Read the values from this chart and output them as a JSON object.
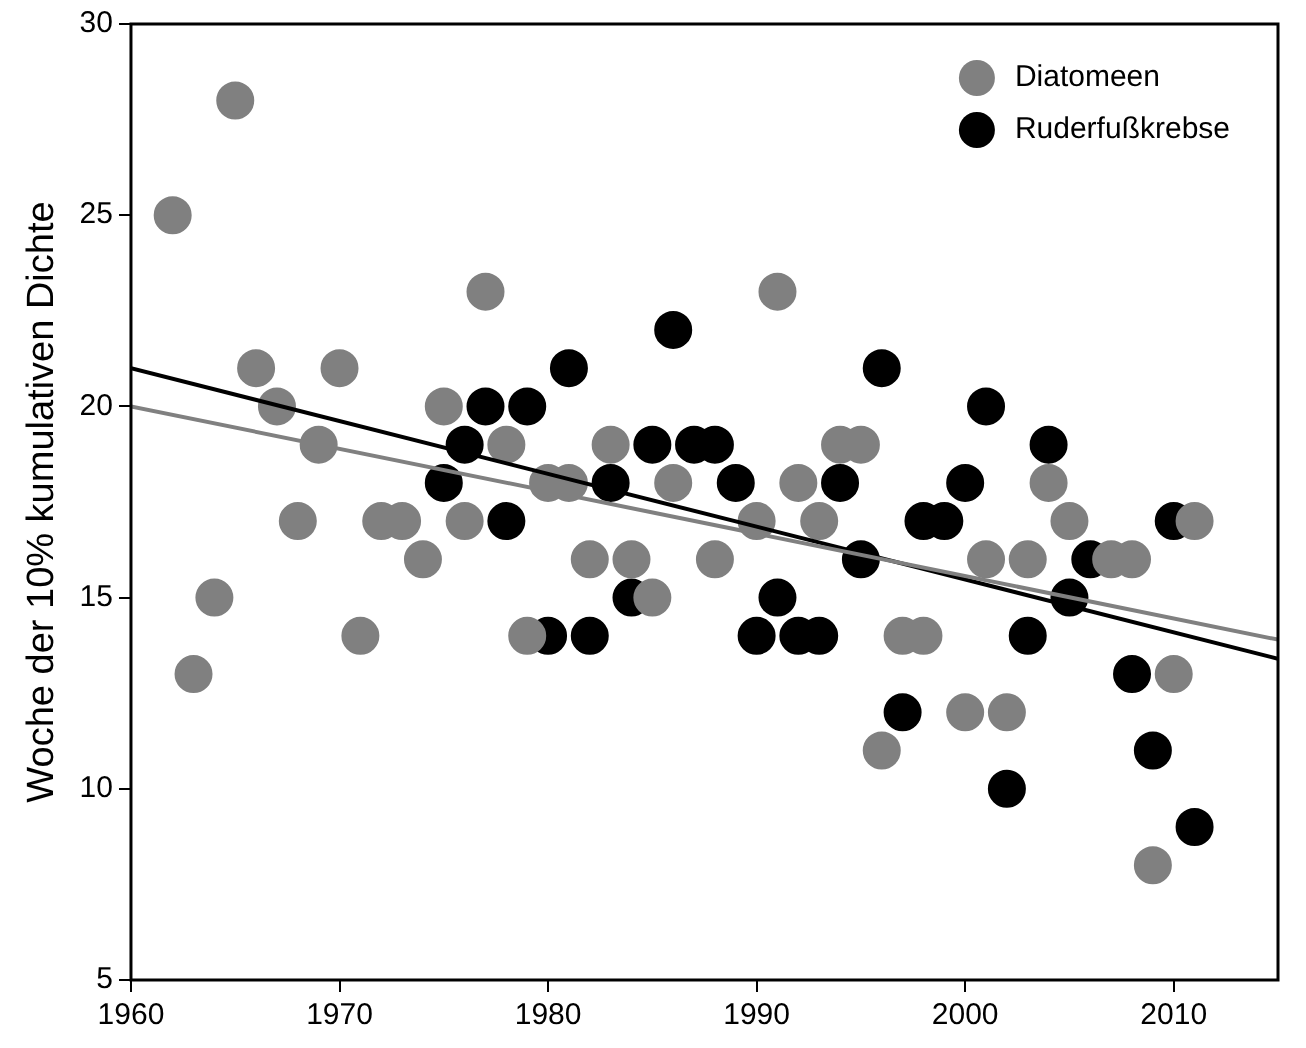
{
  "chart_data": {
    "type": "scatter",
    "ylabel": "Woche der 10% kumulativen Dichte",
    "xlim": [
      1960,
      2015
    ],
    "xticks": [
      1960,
      1970,
      1980,
      1990,
      2000,
      2010
    ],
    "ylim": [
      5,
      30
    ],
    "yticks": [
      5,
      10,
      15,
      20,
      25,
      30
    ],
    "grid": false,
    "legend": "top right",
    "marker": "circle",
    "series": [
      {
        "name": "Diatomeen",
        "color": "#808080",
        "x": [
          1962,
          1963,
          1964,
          1965,
          1966,
          1967,
          1968,
          1969,
          1970,
          1971,
          1972,
          1973,
          1974,
          1975,
          1976,
          1977,
          1978,
          1979,
          1980,
          1981,
          1982,
          1983,
          1984,
          1985,
          1986,
          1988,
          1990,
          1991,
          1992,
          1993,
          1994,
          1995,
          1996,
          1997,
          1998,
          2000,
          2001,
          2002,
          2003,
          2004,
          2005,
          2007,
          2008,
          2009,
          2010,
          2011
        ],
        "values": [
          25,
          13,
          15,
          28,
          21,
          20,
          17,
          19,
          21,
          14,
          17,
          17,
          16,
          20,
          17,
          23,
          19,
          14,
          18,
          18,
          16,
          19,
          16,
          15,
          18,
          16,
          17,
          23,
          18,
          17,
          19,
          19,
          11,
          14,
          14,
          12,
          16,
          12,
          16,
          18,
          17,
          16,
          16,
          8,
          13,
          17
        ]
      },
      {
        "name": "Ruderfußkrebse",
        "color": "#000000",
        "x": [
          1975,
          1976,
          1977,
          1978,
          1979,
          1980,
          1981,
          1982,
          1983,
          1984,
          1985,
          1986,
          1987,
          1988,
          1989,
          1990,
          1991,
          1992,
          1993,
          1994,
          1995,
          1996,
          1997,
          1998,
          1999,
          2000,
          2001,
          2002,
          2003,
          2004,
          2005,
          2006,
          2008,
          2009,
          2010,
          2011
        ],
        "values": [
          18,
          19,
          20,
          17,
          20,
          14,
          21,
          14,
          18,
          15,
          19,
          22,
          19,
          19,
          18,
          14,
          15,
          14,
          14,
          18,
          16,
          21,
          12,
          17,
          17,
          18,
          20,
          10,
          14,
          19,
          15,
          16,
          13,
          11,
          17,
          9
        ]
      },
      {
        "type": "line",
        "marker": "none",
        "color": "#808080",
        "x": [
          1960,
          2015
        ],
        "values": [
          20,
          13.9
        ]
      },
      {
        "type": "line",
        "marker": "none",
        "color": "#000000",
        "x": [
          1960,
          2015
        ],
        "values": [
          21,
          13.4
        ]
      }
    ]
  }
}
